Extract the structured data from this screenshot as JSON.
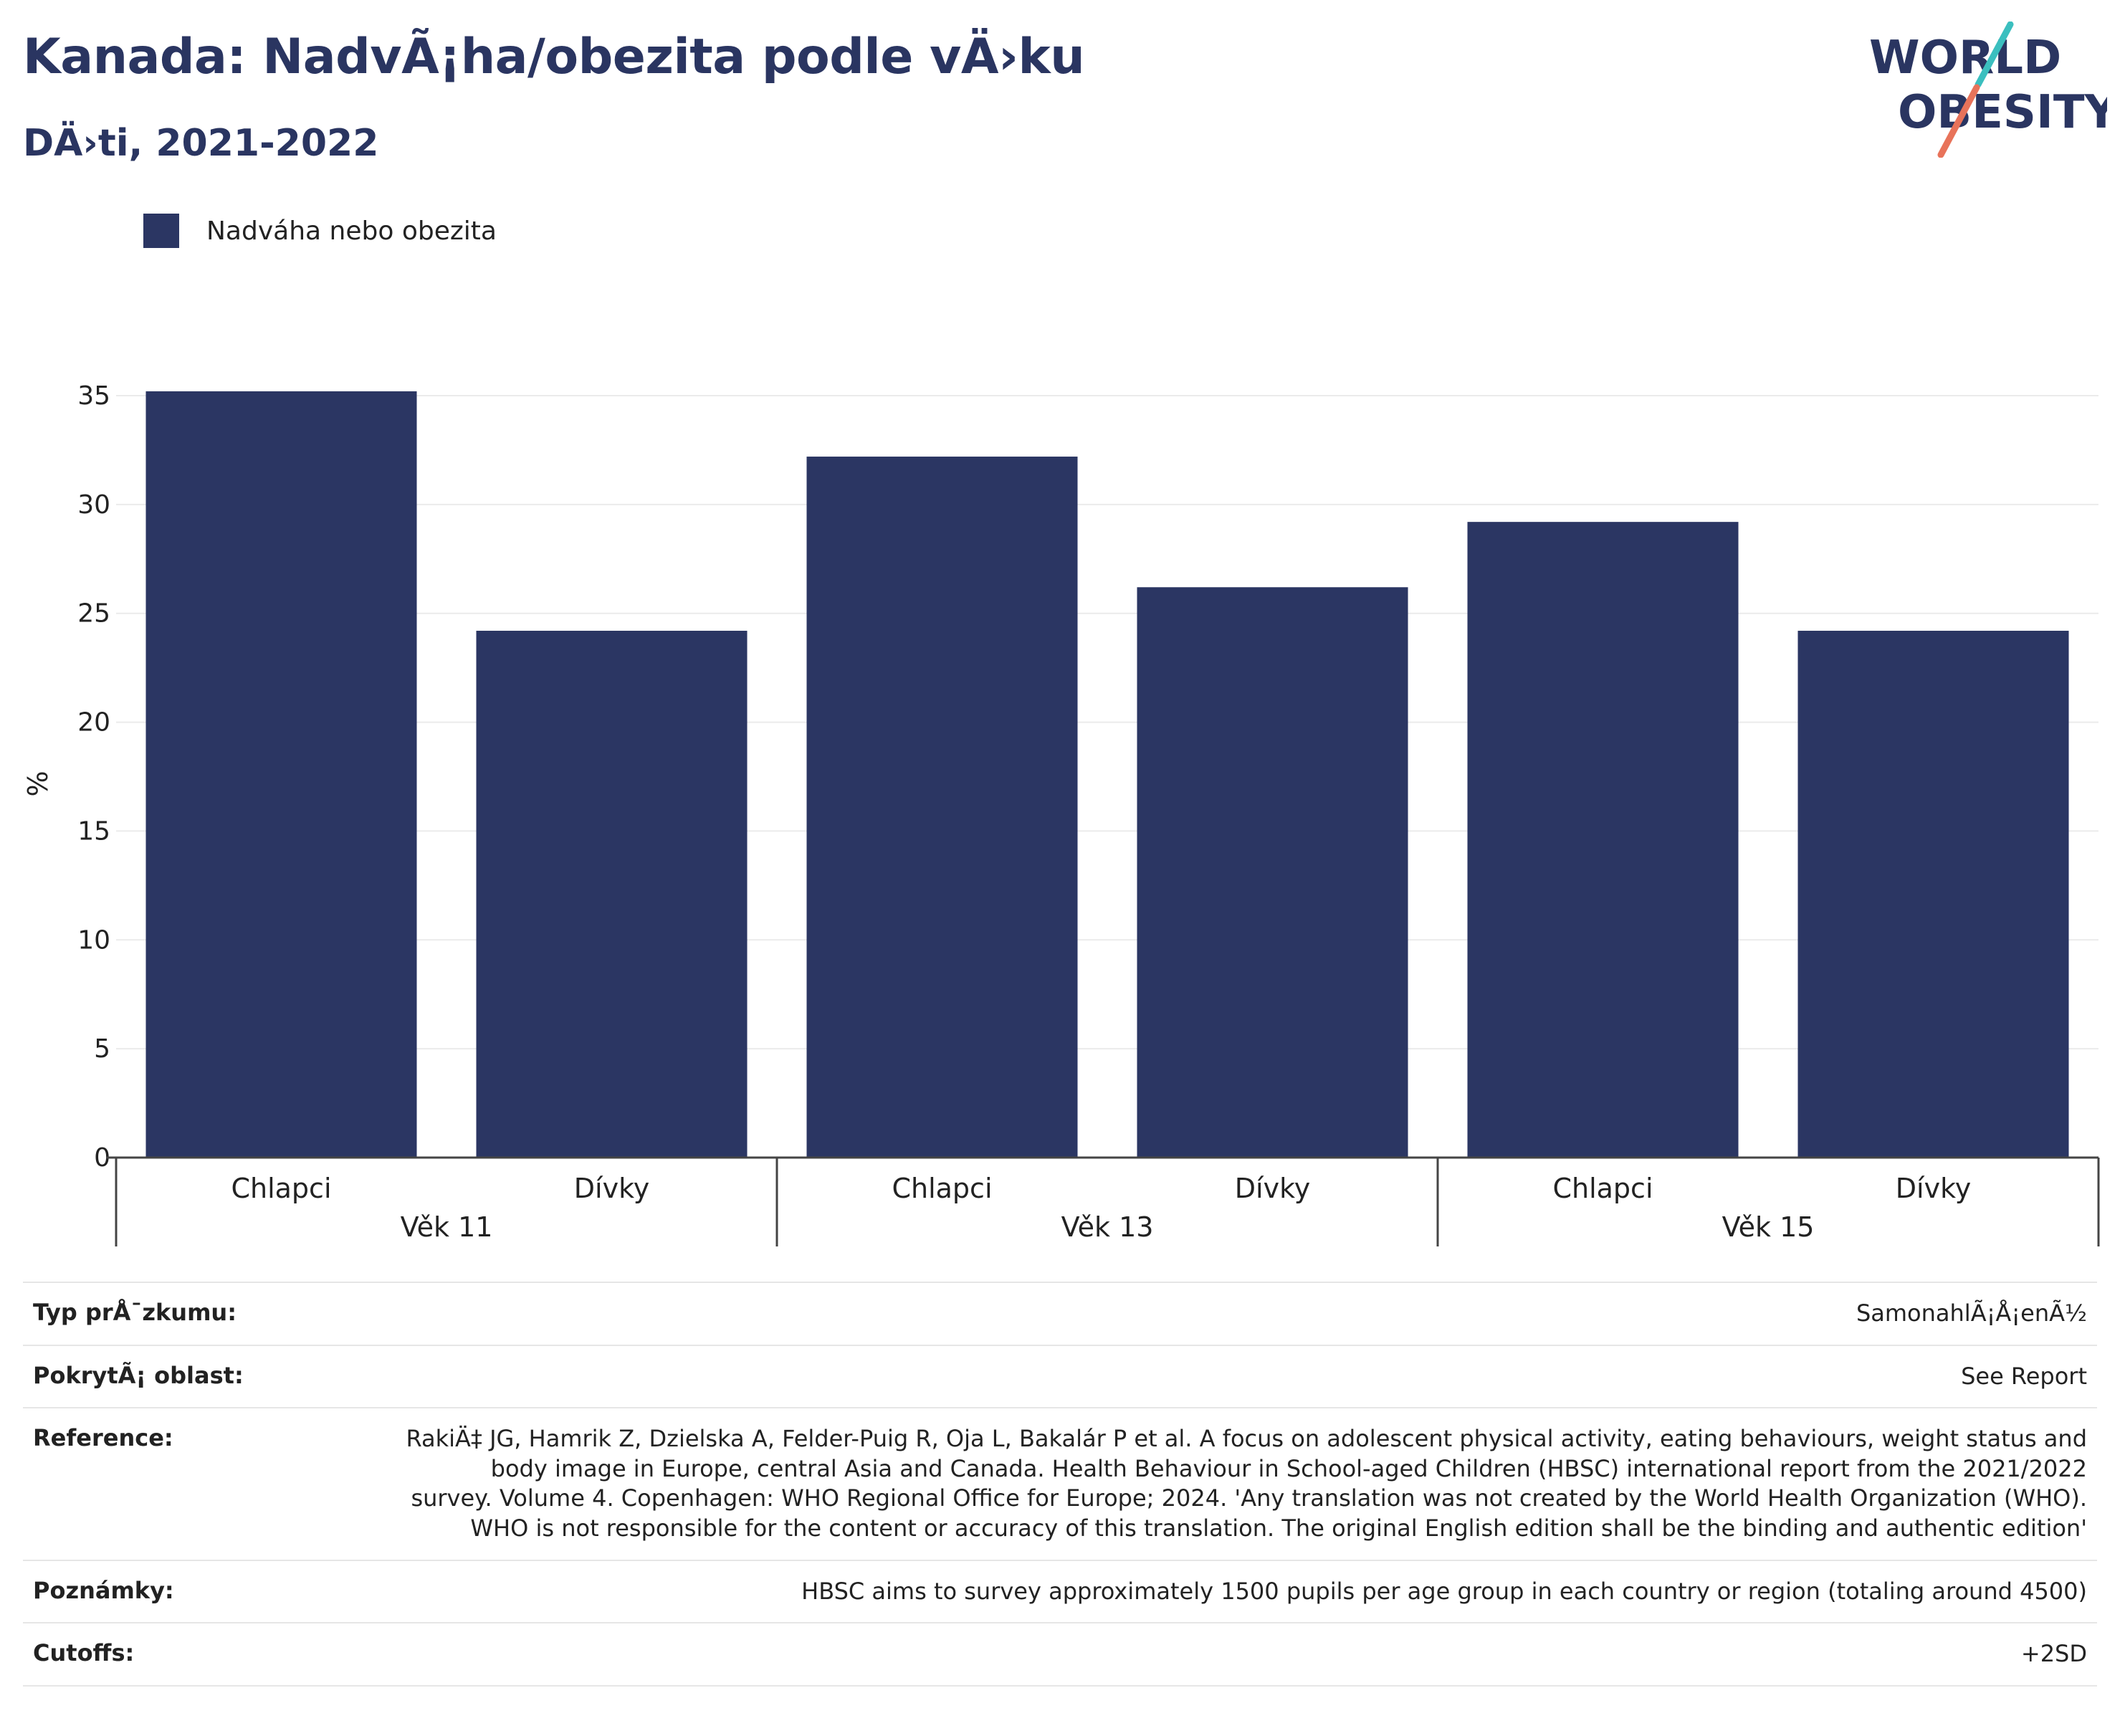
{
  "header": {
    "title": "Kanada: NadvÃ¡ha/obezita podle vÄ›ku",
    "subtitle": "DÄ›ti, 2021-2022"
  },
  "logo": {
    "line1": "WORLD",
    "line2": "OBESITY",
    "accent_teal": "#3bbfbf",
    "accent_coral": "#e8735a"
  },
  "legend": {
    "label": "Nadváha nebo obezita",
    "color": "#2b3663"
  },
  "chart_data": {
    "type": "bar",
    "ylabel": "%",
    "ylim": [
      0,
      35
    ],
    "yticks": [
      0,
      5,
      10,
      15,
      20,
      25,
      30,
      35
    ],
    "grid": true,
    "legend_position": "top-left",
    "groups": [
      {
        "label": "Věk 11",
        "categories": [
          "Chlapci",
          "Dívky"
        ],
        "values": [
          35.2,
          24.2
        ]
      },
      {
        "label": "Věk 13",
        "categories": [
          "Chlapci",
          "Dívky"
        ],
        "values": [
          32.2,
          26.2
        ]
      },
      {
        "label": "Věk 15",
        "categories": [
          "Chlapci",
          "Dívky"
        ],
        "values": [
          29.2,
          24.2
        ]
      }
    ],
    "series": [
      {
        "name": "Nadváha nebo obezita",
        "color": "#2b3663"
      }
    ]
  },
  "meta": {
    "rows": [
      {
        "key": "Typ prÅ¯zkumu:",
        "value": "SamonahlÃ¡Å¡enÃ½"
      },
      {
        "key": "PokrytÃ¡ oblast:",
        "value": "See Report"
      },
      {
        "key": "Reference:",
        "value": "RakiÄ‡ JG, Hamrik Z, Dzielska A, Felder-Puig R, Oja L, Bakalár P et al. A focus on adolescent physical activity, eating behaviours, weight status and body image in Europe, central Asia and Canada. Health Behaviour in School-aged Children (HBSC) international report from the 2021/2022 survey. Volume 4. Copenhagen: WHO Regional Office for Europe; 2024. 'Any translation was not created by the World Health Organization (WHO). WHO is not responsible for the content or accuracy of this translation. The original English edition shall be the binding and authentic edition'"
      },
      {
        "key": "Poznámky:",
        "value": "HBSC aims to survey approximately 1500 pupils per age group in each country or region (totaling around 4500)"
      },
      {
        "key": "Cutoffs:",
        "value": "+2SD"
      }
    ]
  }
}
